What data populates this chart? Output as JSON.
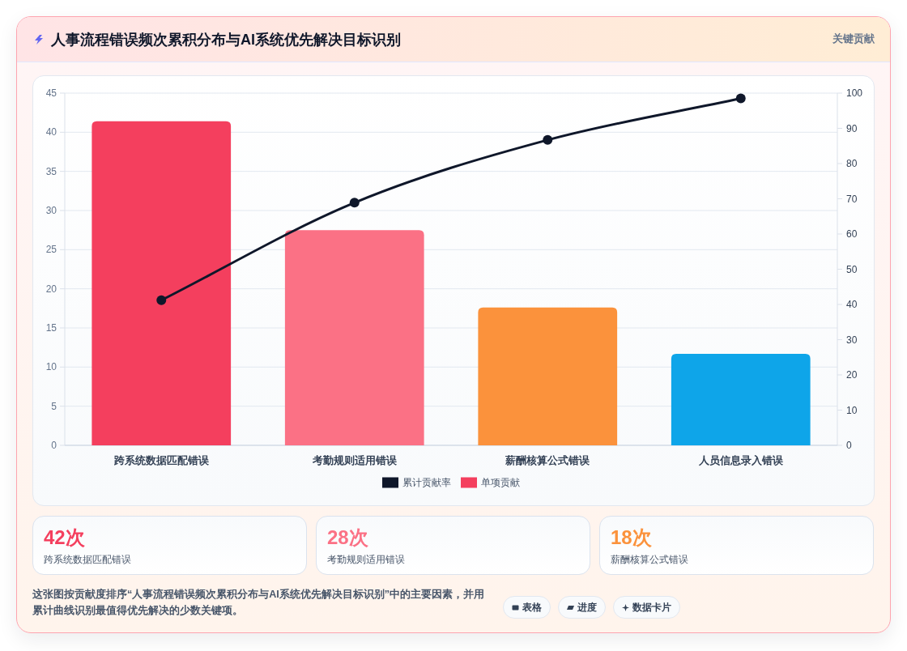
{
  "chart_data": {
    "type": "bar",
    "title": "人事流程错误频次累积分布与AI系统优先解决目标识别",
    "categories": [
      "跨系统数据匹配错误",
      "考勤规则适用错误",
      "薪酬核算公式错误",
      "人员信息录入错误"
    ],
    "series": [
      {
        "name": "累计贡献率",
        "type": "line",
        "axis": "y2",
        "color": "#0f172a",
        "values": [
          41.2,
          68.9,
          86.7,
          98.5
        ]
      },
      {
        "name": "单项贡献",
        "colors": [
          "#f43f5e",
          "#fb7185",
          "#fb923c",
          "#0ea5e9"
        ],
        "values": [
          41.4,
          27.5,
          17.6,
          11.7
        ]
      }
    ],
    "ylim": [
      0,
      45
    ],
    "yticks": [
      0,
      5,
      10,
      15,
      20,
      25,
      30,
      35,
      40,
      45
    ],
    "y2lim": [
      0,
      100
    ],
    "y2ticks": [
      0,
      10,
      20,
      30,
      40,
      50,
      60,
      70,
      80,
      90,
      100
    ],
    "grid": "y",
    "legend": "bottom",
    "marker": "circle",
    "line_style": "solid",
    "annotations": [
      "关键贡献",
      "42次",
      "跨系统数据匹配错误",
      "28次",
      "考勤规则适用错误",
      "18次",
      "薪酬核算公式错误",
      "这张图按贡献度排序“人事流程错误频次累积分布与AI系统优先解决目标识别”中的主要因素，并用累计曲线识别最值得优先解决的少数关键项。",
      "表格",
      "进度",
      "数据卡片"
    ]
  }
}
